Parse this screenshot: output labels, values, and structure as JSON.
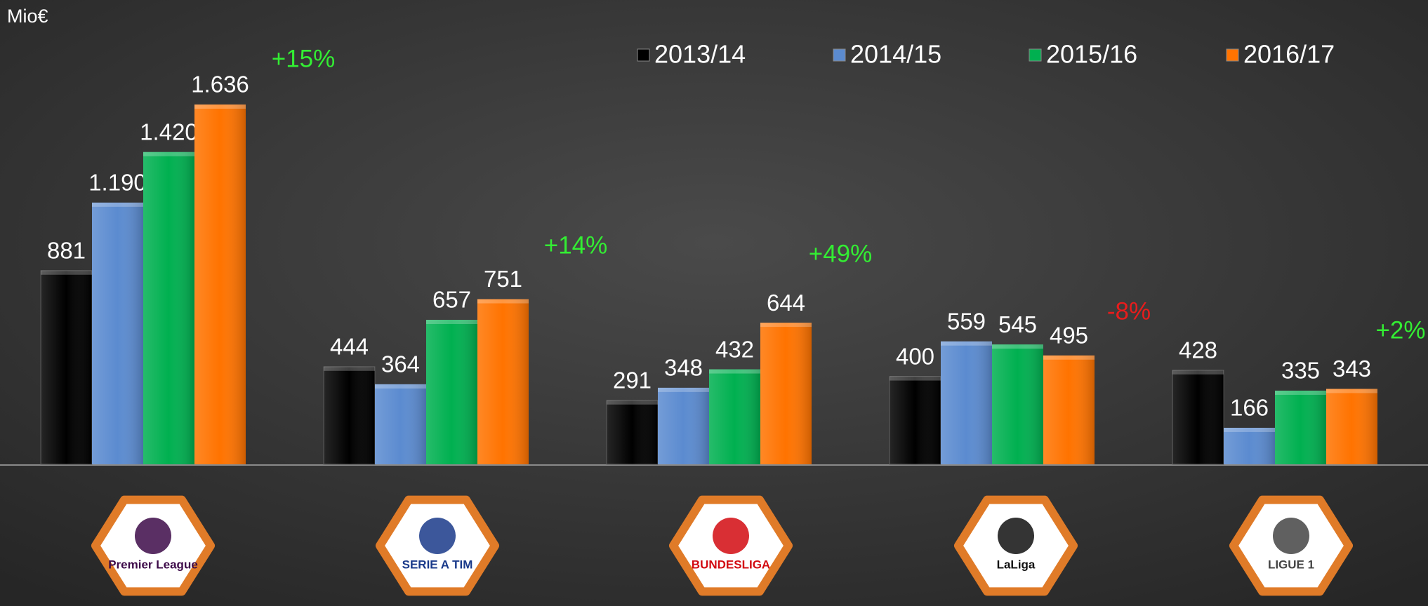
{
  "chart_data": {
    "type": "bar",
    "unit_label": "Mio€",
    "categories": [
      "Premier League",
      "SERIE A TIM",
      "BUNDESLIGA",
      "LaLiga",
      "LIGUE 1"
    ],
    "series": [
      {
        "name": "2013/14",
        "color": "#000000",
        "values": [
          881,
          444,
          291,
          400,
          428
        ],
        "value_labels": [
          "881",
          "444",
          "291",
          "400",
          "428"
        ]
      },
      {
        "name": "2014/15",
        "color": "#5b8bd0",
        "values": [
          1190,
          364,
          348,
          559,
          166
        ],
        "value_labels": [
          "1.190",
          "364",
          "348",
          "559",
          "166"
        ]
      },
      {
        "name": "2015/16",
        "color": "#00b050",
        "values": [
          1420,
          657,
          432,
          545,
          335
        ],
        "value_labels": [
          "1.420",
          "657",
          "432",
          "545",
          "335"
        ]
      },
      {
        "name": "2016/17",
        "color": "#ff7300",
        "values": [
          1636,
          751,
          644,
          495,
          343
        ],
        "value_labels": [
          "1.636",
          "751",
          "644",
          "495",
          "343"
        ]
      }
    ],
    "annotations": [
      {
        "text": "+15%",
        "color": "#33ee33"
      },
      {
        "text": "+14%",
        "color": "#33ee33"
      },
      {
        "text": "+49%",
        "color": "#33ee33"
      },
      {
        "text": "-8%",
        "color": "#e81c1c"
      },
      {
        "text": "+2%",
        "color": "#33ee33"
      }
    ],
    "legend": "top-right"
  }
}
